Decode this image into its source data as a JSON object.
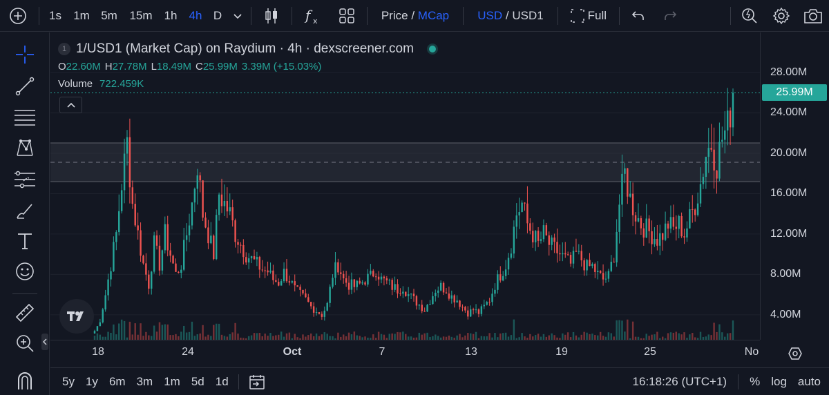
{
  "toolbar": {
    "intervals": [
      "1s",
      "1m",
      "5m",
      "15m",
      "1h",
      "4h",
      "D"
    ],
    "active_interval": "4h",
    "price_label": "Price",
    "slash1": "/",
    "mcap_label": "MCap",
    "usd_label": "USD",
    "slash2": "/",
    "usd1_label": "USD1",
    "full_label": "Full"
  },
  "legend": {
    "index_badge": "1",
    "title": "1/USD1 (Market Cap) on Raydium · 4h · dexscreener.com",
    "o_label": "O",
    "o_value": "22.60M",
    "h_label": "H",
    "h_value": "27.78M",
    "l_label": "L",
    "l_value": "18.49M",
    "c_label": "C",
    "c_value": "25.99M",
    "change": "3.39M (+15.03%)",
    "volume_label": "Volume",
    "volume_value": "722.459K"
  },
  "price_axis": {
    "labels": [
      "28.00M",
      "24.00M",
      "20.00M",
      "16.00M",
      "12.00M",
      "8.00M",
      "4.00M"
    ],
    "last_price": "25.99M"
  },
  "time_axis": {
    "labels": [
      "18",
      "24",
      "Oct",
      "7",
      "13",
      "19",
      "25",
      "No"
    ]
  },
  "bottom": {
    "ranges": [
      "5y",
      "1y",
      "6m",
      "3m",
      "1m",
      "5d",
      "1d"
    ],
    "clock": "16:18:26 (UTC+1)",
    "percent": "%",
    "log": "log",
    "auto": "auto"
  },
  "colors": {
    "up": "#26a69a",
    "down": "#ef5350",
    "accent": "#2962ff",
    "background": "#131722"
  },
  "chart_data": {
    "type": "candlestick",
    "series": [
      {
        "name": "1/USD1 (Market Cap)",
        "ohlc_last": {
          "o": 22.6,
          "h": 27.78,
          "l": 18.49,
          "c": 25.99
        }
      }
    ],
    "unit": "M USD",
    "ylim": [
      2,
      30
    ],
    "y_ticks": [
      4,
      8,
      12,
      16,
      20,
      24,
      28
    ],
    "x_ticks": [
      "18",
      "24",
      "Oct",
      "7",
      "13",
      "19",
      "25",
      "No"
    ],
    "close_path": [
      2.2,
      3.5,
      6,
      9,
      12,
      17,
      21,
      15,
      12,
      9,
      7,
      11,
      9,
      12,
      10,
      8,
      9,
      12,
      15,
      19,
      14,
      12,
      10,
      16,
      15,
      14,
      12,
      11,
      10,
      9.5,
      9,
      8.5,
      8.3,
      7.5,
      7.2,
      8.2,
      7.5,
      6.5,
      6,
      5.5,
      4.8,
      4.4,
      4,
      5,
      8,
      9,
      7.5,
      7,
      6.8,
      7,
      7.5,
      7.8,
      8.5,
      7.5,
      7.2,
      6.8,
      6.5,
      6.8,
      6,
      5.5,
      5,
      4.5,
      5.5,
      6.5,
      6.8,
      6.5,
      5.8,
      5.5,
      4.8,
      4.2,
      4.5,
      4.2,
      4.8,
      5.5,
      7,
      8,
      9,
      11,
      14,
      15,
      13,
      12,
      11,
      12,
      11,
      10.5,
      10,
      9.5,
      9,
      10,
      9.5,
      8.7,
      8.8,
      8,
      7.5,
      7.8,
      10,
      15,
      18,
      15.5,
      14,
      13,
      12.5,
      12,
      11.5,
      12,
      13,
      12.5,
      13,
      12,
      13.5,
      15,
      17,
      20,
      21,
      19,
      21.5,
      22.6,
      25.99
    ]
  }
}
